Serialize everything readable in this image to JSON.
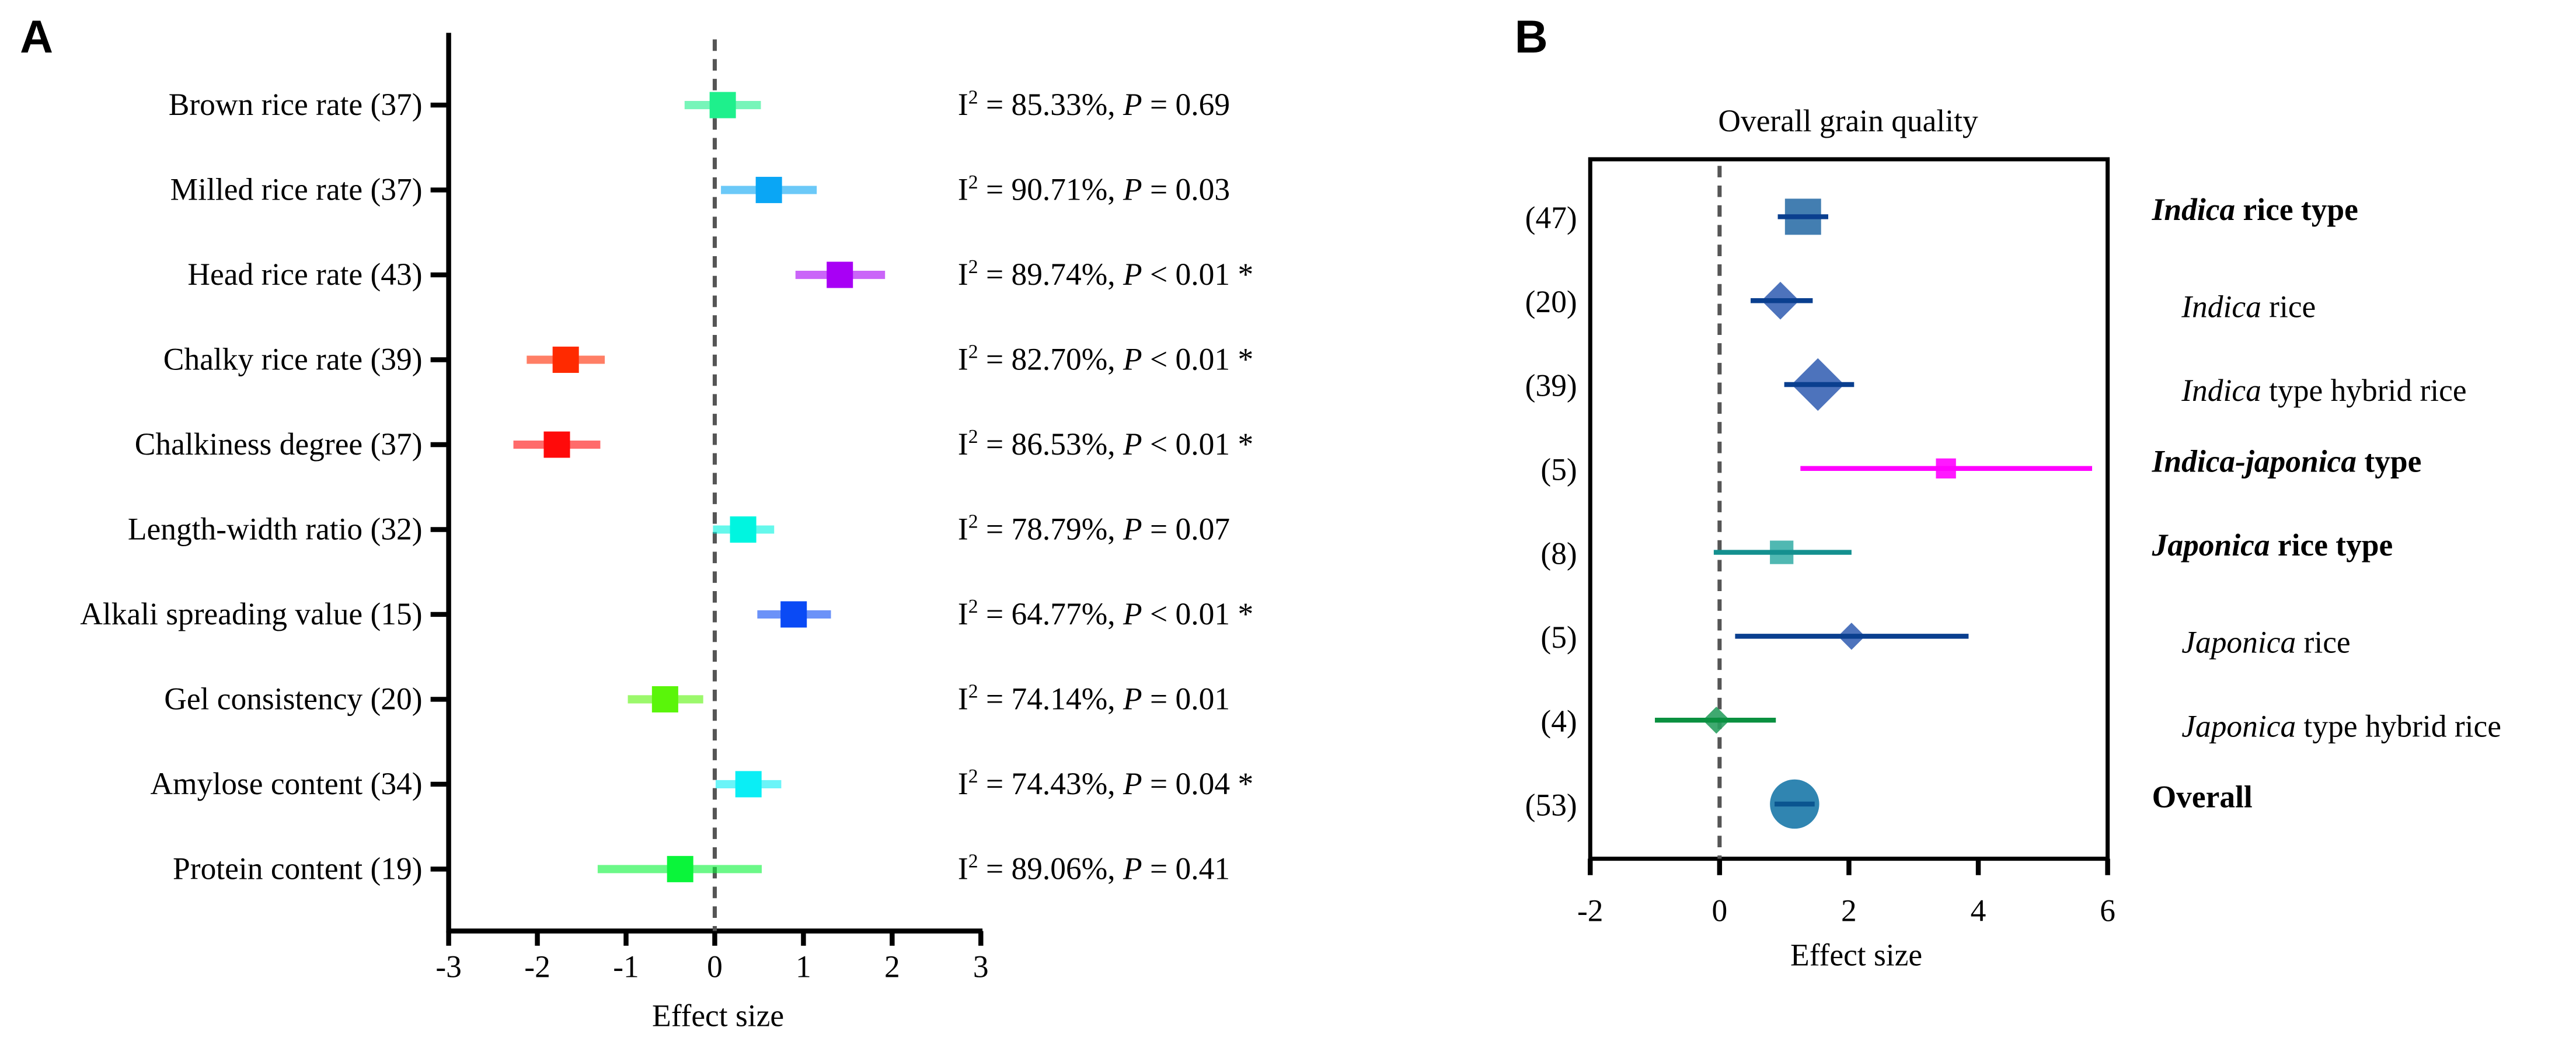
{
  "chart_data": [
    {
      "type": "forest",
      "panel": "A",
      "title": "",
      "xlabel": "Effect size",
      "xlim": [
        -3,
        3
      ],
      "xticks": [
        "-3",
        "-2",
        "-1",
        "0",
        "1",
        "2",
        "3"
      ],
      "stat_labels": {
        "i": "I",
        "sup": "2",
        "p": "P"
      },
      "rows": [
        {
          "label": "Brown rice rate (37)",
          "est": 0.09,
          "lo": -0.34,
          "hi": 0.52,
          "i2": "85.33%",
          "p": "= 0.69",
          "sig": "",
          "color": "#1ef08c"
        },
        {
          "label": "Milled rice rate (37)",
          "est": 0.61,
          "lo": 0.07,
          "hi": 1.15,
          "i2": "90.71%",
          "p": "= 0.03",
          "sig": "",
          "color": "#0aa6f5"
        },
        {
          "label": "Head rice rate (43)",
          "est": 1.41,
          "lo": 0.91,
          "hi": 1.92,
          "i2": "89.74%",
          "p": "< 0.01",
          "sig": "*",
          "color": "#a800f5"
        },
        {
          "label": "Chalky rice rate (39)",
          "est": -1.68,
          "lo": -2.12,
          "hi": -1.24,
          "i2": "82.70%",
          "p": "< 0.01",
          "sig": "*",
          "color": "#ff2a00"
        },
        {
          "label": "Chalkiness degree (37)",
          "est": -1.78,
          "lo": -2.27,
          "hi": -1.29,
          "i2": "86.53%",
          "p": "< 0.01",
          "sig": "*",
          "color": "#ff0a0a"
        },
        {
          "label": "Length-width ratio (32)",
          "est": 0.32,
          "lo": -0.02,
          "hi": 0.67,
          "i2": "78.79%",
          "p": "= 0.07",
          "sig": "",
          "color": "#00f5e0"
        },
        {
          "label": "Alkali spreading value (15)",
          "est": 0.89,
          "lo": 0.48,
          "hi": 1.31,
          "i2": "64.77%",
          "p": "< 0.01",
          "sig": "*",
          "color": "#0a4af5"
        },
        {
          "label": "Gel consistency (20)",
          "est": -0.56,
          "lo": -0.98,
          "hi": -0.13,
          "i2": "74.14%",
          "p": "= 0.01",
          "sig": "",
          "color": "#5af50a"
        },
        {
          "label": "Amylose content (34)",
          "est": 0.38,
          "lo": 0.01,
          "hi": 0.75,
          "i2": "74.43%",
          "p": "= 0.04",
          "sig": "*",
          "color": "#0aeef5"
        },
        {
          "label": "Protein content (19)",
          "est": -0.39,
          "lo": -1.32,
          "hi": 0.53,
          "i2": "89.06%",
          "p": "= 0.41",
          "sig": "",
          "color": "#0af53a"
        }
      ]
    },
    {
      "type": "forest",
      "panel": "B",
      "title": "Overall grain quality",
      "xlabel": "Effect size",
      "xlim": [
        -2,
        6
      ],
      "xticks": [
        "-2",
        "0",
        "2",
        "4",
        "6"
      ],
      "rows": [
        {
          "count": "(47)",
          "italic": "Indica",
          "rest": " rice type",
          "bold": true,
          "est": 1.29,
          "lo": 0.9,
          "hi": 1.68,
          "marker": "square",
          "size": 1.0,
          "color": "#2f70a8",
          "line": "#0a3f8f"
        },
        {
          "count": "(20)",
          "italic": "Indica",
          "rest": " rice",
          "bold": false,
          "est": 0.94,
          "lo": 0.48,
          "hi": 1.44,
          "marker": "diamond",
          "size": 0.5,
          "color": "#3a64b5",
          "line": "#0a3f8f"
        },
        {
          "count": "(39)",
          "italic": "Indica",
          "rest": " type hybrid rice",
          "bold": false,
          "est": 1.52,
          "lo": 1.0,
          "hi": 2.08,
          "marker": "diamond",
          "size": 0.85,
          "color": "#3a64b5",
          "line": "#0a3f8f"
        },
        {
          "count": "(5)",
          "italic": "Indica-japonica",
          "rest": " type",
          "bold": true,
          "est": 3.5,
          "lo": 1.25,
          "hi": 5.76,
          "marker": "square",
          "size": 0.3,
          "color": "#ff00ff",
          "line": "#ff00ff"
        },
        {
          "count": "(8)",
          "italic": "Japonica",
          "rest": " rice type",
          "bold": true,
          "est": 0.96,
          "lo": -0.09,
          "hi": 2.04,
          "marker": "square",
          "size": 0.45,
          "color": "#3db0aa",
          "line": "#14908f"
        },
        {
          "count": "(5)",
          "italic": "Japonica",
          "rest": " rice",
          "bold": false,
          "est": 2.04,
          "lo": 0.24,
          "hi": 3.85,
          "marker": "diamond",
          "size": 0.25,
          "color": "#3a64b5",
          "line": "#0a3f8f"
        },
        {
          "count": "(4)",
          "italic": "Japonica",
          "rest": " type hybrid rice",
          "bold": false,
          "est": -0.05,
          "lo": -1.0,
          "hi": 0.87,
          "marker": "diamond",
          "size": 0.25,
          "color": "#2aa060",
          "line": "#0a9040"
        },
        {
          "count": "(53)",
          "italic": "",
          "rest": "Overall",
          "bold": true,
          "est": 1.16,
          "lo": 0.85,
          "hi": 1.47,
          "marker": "circle",
          "size": 1.0,
          "color": "#1a78a8",
          "line": "#0a5590"
        }
      ]
    }
  ]
}
